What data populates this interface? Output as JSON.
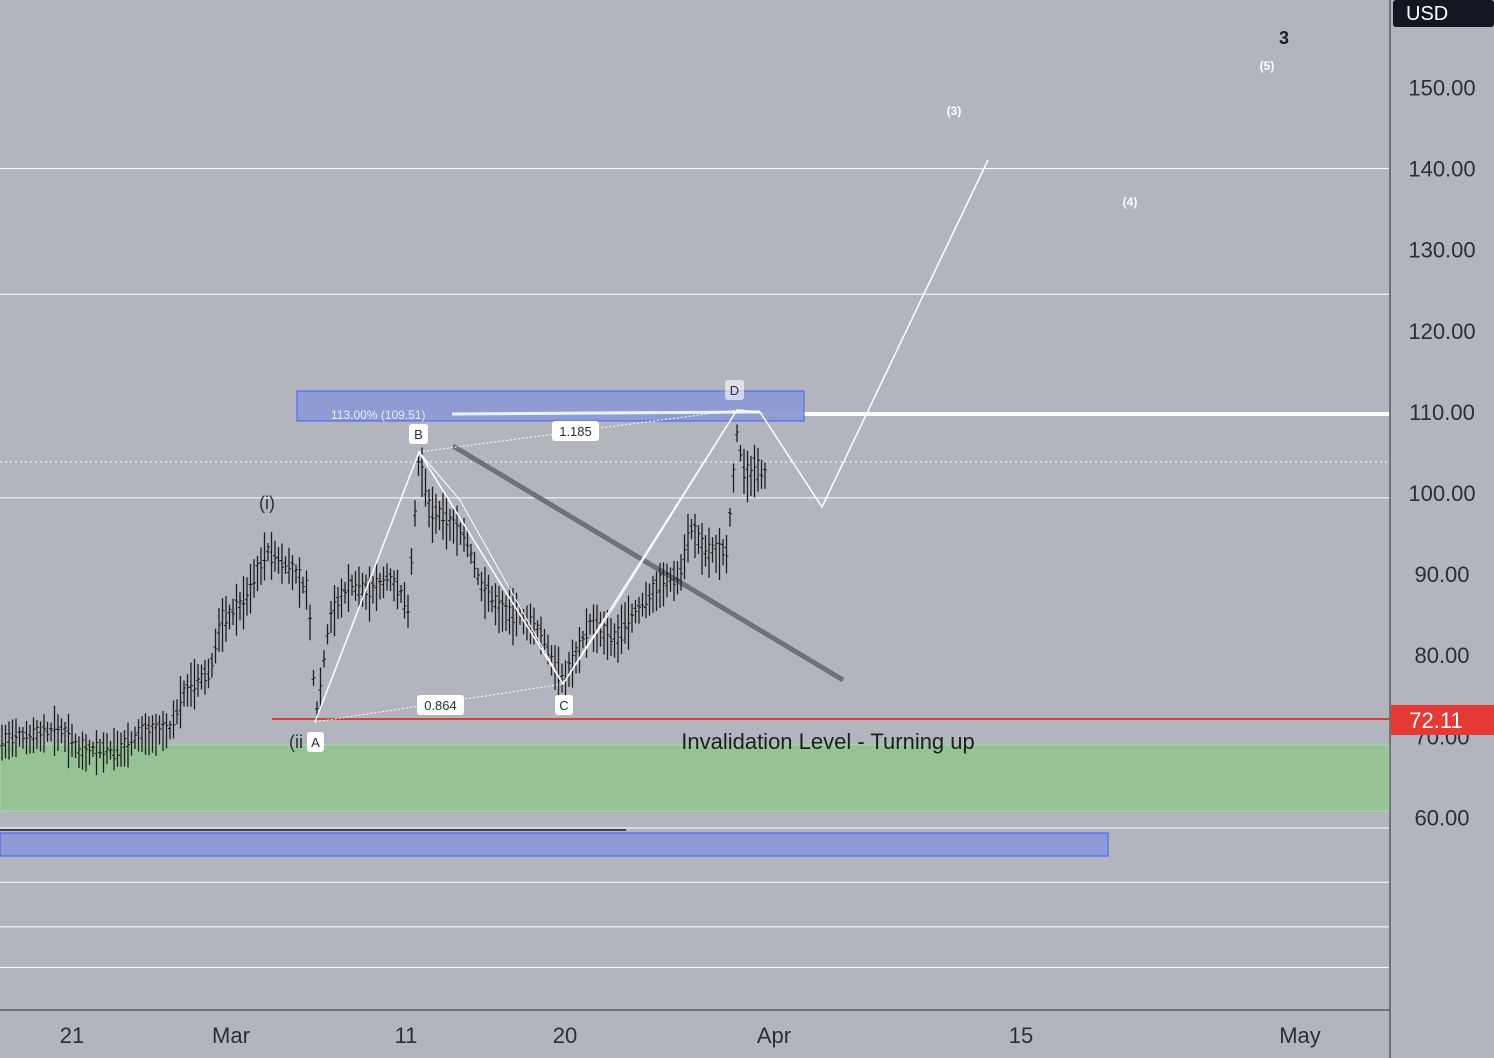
{
  "currency": "USD",
  "current_price_label": "72.11",
  "chart_data": {
    "type": "candlestick",
    "title": "",
    "y_ticks": [
      "150.00",
      "140.00",
      "130.00",
      "120.00",
      "110.00",
      "100.00",
      "90.00",
      "80.00",
      "70.00",
      "60.00"
    ],
    "x_ticks": [
      "21",
      "Mar",
      "11",
      "20",
      "Apr",
      "15",
      "May"
    ],
    "ylim": [
      40,
      160
    ],
    "pattern_points": [
      {
        "label": "A",
        "price": 72.1
      },
      {
        "label": "B",
        "price": 106.2
      },
      {
        "label": "C",
        "price": 76.6
      },
      {
        "label": "D",
        "price": 109.5
      }
    ],
    "ratios": {
      "ac_ratio": "0.864",
      "bd_ratio": "1.185"
    },
    "fib_label": "113.00% (109.51)",
    "wave_labels": {
      "w_i": "(i)",
      "w_ii": "(ii",
      "w_3": "(3)",
      "w_4": "(4)",
      "w_5": "(5)",
      "degree": "3"
    },
    "annotation": "Invalidation Level - Turning up",
    "levels": {
      "invalidation": 72.11,
      "resistance": 109.5,
      "support_zone": [
        61,
        69
      ],
      "lower_box": [
        55.5,
        58.5
      ],
      "dotted_price": 104.5,
      "horizontals": [
        140,
        124.5,
        99.4,
        58.7,
        52,
        46.5,
        41.5
      ]
    },
    "colors": {
      "background": "#b2b5be",
      "candle": "#1e1e1e",
      "invalidation": "#e53935",
      "support_zone": "#95c395",
      "blue_box": "#8e9bd6",
      "trendline": "#6e717a",
      "projection": "#ffffff"
    },
    "candles": []
  }
}
